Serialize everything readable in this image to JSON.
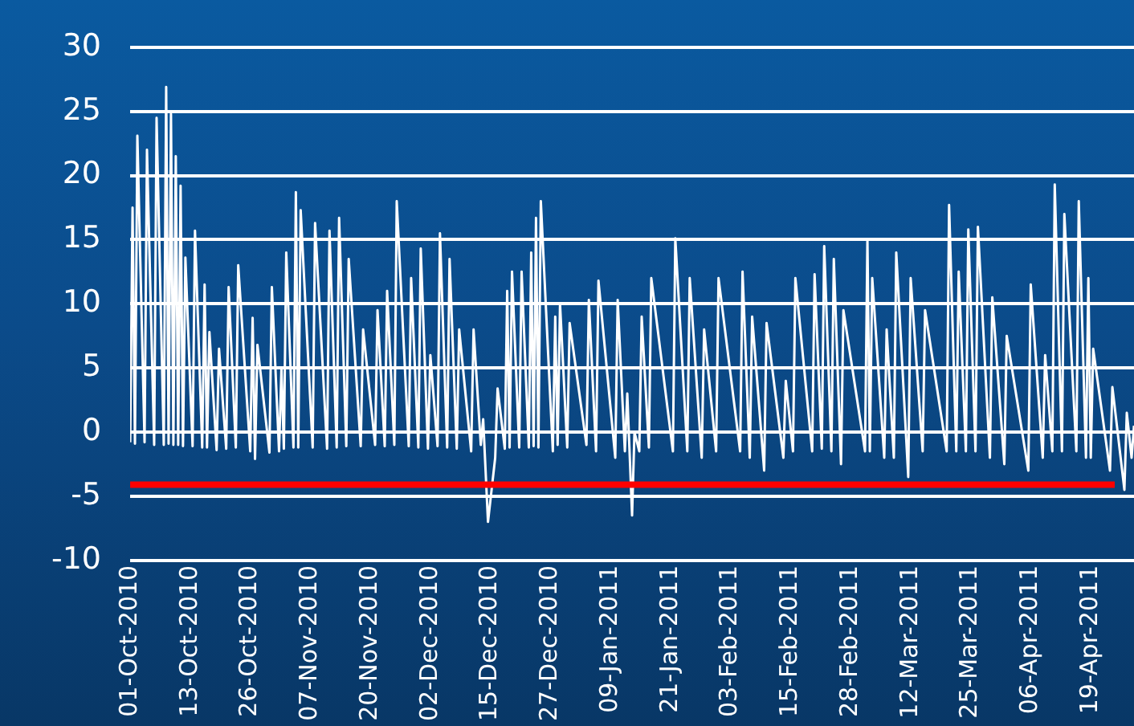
{
  "chart_data": {
    "type": "line",
    "xlim": [
      "2010-10-01",
      "2011-04-28"
    ],
    "xticks": [
      {
        "value": "2010-10-01T00:00",
        "label": "01-Oct-2010"
      },
      {
        "value": "2010-10-13T12:00",
        "label": "13-Oct-2010"
      },
      {
        "value": "2010-10-26T00:00",
        "label": "26-Oct-2010"
      },
      {
        "value": "2010-11-07T12:00",
        "label": "07-Nov-2010"
      },
      {
        "value": "2010-11-20T00:00",
        "label": "20-Nov-2010"
      },
      {
        "value": "2010-12-02T12:00",
        "label": "02-Dec-2010"
      },
      {
        "value": "2010-12-15T00:00",
        "label": "15-Dec-2010"
      },
      {
        "value": "2010-12-27T12:00",
        "label": "27-Dec-2010"
      },
      {
        "value": "2011-01-09T00:00",
        "label": "09-Jan-2011"
      },
      {
        "value": "2011-01-21T12:00",
        "label": "21-Jan-2011"
      },
      {
        "value": "2011-02-03T00:00",
        "label": "03-Feb-2011"
      },
      {
        "value": "2011-02-15T12:00",
        "label": "15-Feb-2011"
      },
      {
        "value": "2011-02-28T00:00",
        "label": "28-Feb-2011"
      },
      {
        "value": "2011-03-12T12:00",
        "label": "12-Mar-2011"
      },
      {
        "value": "2011-03-25T00:00",
        "label": "25-Mar-2011"
      },
      {
        "value": "2011-04-06T12:00",
        "label": "06-Apr-2011"
      },
      {
        "value": "2011-04-19T00:00",
        "label": "19-Apr-2011"
      }
    ],
    "ylim": [
      -10,
      30
    ],
    "yticks": [
      -10,
      -5,
      0,
      5,
      10,
      15,
      20,
      25,
      30
    ],
    "grid": "y",
    "legend": false,
    "marker": "none",
    "line_style": "solid",
    "ref_lines": [
      {
        "axis": "y",
        "value": -4.1,
        "color": "#ff0000"
      }
    ],
    "series": [
      {
        "color": "#ffffff",
        "x": [
          "2010-10-01T00:00",
          "2010-10-01T12:00",
          "2010-10-02T00:00",
          "2010-10-02T12:00",
          "2010-10-04T00:00",
          "2010-10-04T12:00",
          "2010-10-06T00:00",
          "2010-10-06T12:00",
          "2010-10-08T00:00",
          "2010-10-08T12:00",
          "2010-10-09T00:00",
          "2010-10-09T12:00",
          "2010-10-10T00:00",
          "2010-10-10T12:00",
          "2010-10-11T00:00",
          "2010-10-11T12:00",
          "2010-10-12T00:00",
          "2010-10-12T12:00",
          "2010-10-14T00:00",
          "2010-10-14T12:00",
          "2010-10-16T00:00",
          "2010-10-16T12:00",
          "2010-10-17T00:00",
          "2010-10-17T12:00",
          "2010-10-19T00:00",
          "2010-10-19T12:00",
          "2010-10-21T00:00",
          "2010-10-21T12:00",
          "2010-10-23T00:00",
          "2010-10-23T12:00",
          "2010-10-26T00:00",
          "2010-10-26T12:00",
          "2010-10-27T00:00",
          "2010-10-27T12:00",
          "2010-10-30T00:00",
          "2010-10-30T12:00",
          "2010-11-01T00:00",
          "2010-11-01T12:00",
          "2010-11-02T00:00",
          "2010-11-02T12:00",
          "2010-11-04T00:00",
          "2010-11-04T12:00",
          "2010-11-05T00:00",
          "2010-11-05T12:00",
          "2010-11-08T00:00",
          "2010-11-08T12:00",
          "2010-11-11T00:00",
          "2010-11-11T12:00",
          "2010-11-13T00:00",
          "2010-11-13T12:00",
          "2010-11-15T00:00",
          "2010-11-15T12:00",
          "2010-11-18T00:00",
          "2010-11-18T12:00",
          "2010-11-21T00:00",
          "2010-11-21T12:00",
          "2010-11-23T00:00",
          "2010-11-23T12:00",
          "2010-11-25T00:00",
          "2010-11-25T12:00",
          "2010-11-28T00:00",
          "2010-11-28T12:00",
          "2010-11-30T00:00",
          "2010-11-30T12:00",
          "2010-12-02T00:00",
          "2010-12-02T12:00",
          "2010-12-04T00:00",
          "2010-12-04T12:00",
          "2010-12-06T00:00",
          "2010-12-06T12:00",
          "2010-12-08T00:00",
          "2010-12-08T12:00",
          "2010-12-11T00:00",
          "2010-12-11T12:00",
          "2010-12-13T00:00",
          "2010-12-13T12:00",
          "2010-12-14T12:00",
          "2010-12-16T00:00",
          "2010-12-16T12:00",
          "2010-12-18T00:00",
          "2010-12-18T12:00",
          "2010-12-19T00:00",
          "2010-12-19T12:00",
          "2010-12-21T00:00",
          "2010-12-21T12:00",
          "2010-12-23T00:00",
          "2010-12-23T12:00",
          "2010-12-24T00:00",
          "2010-12-24T12:00",
          "2010-12-25T00:00",
          "2010-12-25T12:00",
          "2010-12-28T00:00",
          "2010-12-28T12:00",
          "2010-12-29T00:00",
          "2010-12-29T12:00",
          "2010-12-31T00:00",
          "2010-12-31T12:00",
          "2011-01-04T00:00",
          "2011-01-04T12:00",
          "2011-01-06T00:00",
          "2011-01-06T12:00",
          "2011-01-10T00:00",
          "2011-01-10T12:00",
          "2011-01-12T00:00",
          "2011-01-12T12:00",
          "2011-01-13T12:00",
          "2011-01-14T00:00",
          "2011-01-15T00:00",
          "2011-01-15T12:00",
          "2011-01-17T00:00",
          "2011-01-17T12:00",
          "2011-01-22T00:00",
          "2011-01-22T12:00",
          "2011-01-25T00:00",
          "2011-01-25T12:00",
          "2011-01-28T00:00",
          "2011-01-28T12:00",
          "2011-01-31T00:00",
          "2011-01-31T12:00",
          "2011-02-05T00:00",
          "2011-02-05T12:00",
          "2011-02-07T00:00",
          "2011-02-07T12:00",
          "2011-02-10T00:00",
          "2011-02-10T12:00",
          "2011-02-14T00:00",
          "2011-02-14T12:00",
          "2011-02-16T00:00",
          "2011-02-16T12:00",
          "2011-02-20T00:00",
          "2011-02-20T12:00",
          "2011-02-22T00:00",
          "2011-02-22T12:00",
          "2011-02-24T00:00",
          "2011-02-24T12:00",
          "2011-02-26T00:00",
          "2011-02-26T12:00",
          "2011-03-03T00:00",
          "2011-03-03T12:00",
          "2011-03-04T00:00",
          "2011-03-04T12:00",
          "2011-03-07T00:00",
          "2011-03-07T12:00",
          "2011-03-09T00:00",
          "2011-03-09T12:00",
          "2011-03-12T00:00",
          "2011-03-12T12:00",
          "2011-03-15T00:00",
          "2011-03-15T12:00",
          "2011-03-20T00:00",
          "2011-03-20T12:00",
          "2011-03-22T00:00",
          "2011-03-22T12:00",
          "2011-03-24T00:00",
          "2011-03-24T12:00",
          "2011-03-26T00:00",
          "2011-03-26T12:00",
          "2011-03-29T00:00",
          "2011-03-29T12:00",
          "2011-04-01T00:00",
          "2011-04-01T12:00",
          "2011-04-06T00:00",
          "2011-04-06T12:00",
          "2011-04-09T00:00",
          "2011-04-09T12:00",
          "2011-04-11T00:00",
          "2011-04-11T12:00",
          "2011-04-13T00:00",
          "2011-04-13T12:00",
          "2011-04-16T00:00",
          "2011-04-16T12:00",
          "2011-04-18T00:00",
          "2011-04-18T12:00",
          "2011-04-19T00:00",
          "2011-04-19T12:00",
          "2011-04-23T00:00",
          "2011-04-23T12:00",
          "2011-04-26T00:00",
          "2011-04-26T12:00",
          "2011-04-27T12:00",
          "2011-04-28T00:00"
        ],
        "values": [
          -0.8,
          17.5,
          -0.9,
          23.1,
          -0.8,
          22,
          -1,
          24.5,
          -1,
          26.9,
          -0.9,
          24.8,
          -1,
          21.5,
          -1,
          19.2,
          -1.1,
          13.6,
          -1.1,
          15.7,
          -1.2,
          11.5,
          -1.2,
          7.8,
          -1.4,
          6.5,
          -1.3,
          11.3,
          -1.2,
          13,
          -1.5,
          8.9,
          -2.1,
          6.8,
          -1.6,
          11.3,
          -1.5,
          5,
          -1.3,
          14,
          -1.2,
          18.7,
          -1.2,
          17.3,
          -1.2,
          16.3,
          -1.3,
          15.7,
          -1.2,
          16.7,
          -1.1,
          13.5,
          -1.1,
          8,
          -1,
          9.5,
          -1.1,
          11,
          -1,
          18,
          -1.1,
          12,
          -1.2,
          14.3,
          -1.3,
          6,
          -1.1,
          15.5,
          -1.2,
          13.5,
          -1.3,
          8,
          -1.5,
          8,
          -1,
          1,
          -7,
          -2,
          3.4,
          -1.3,
          11,
          -1.2,
          12.5,
          -1.2,
          12.5,
          -1.2,
          14,
          -1.1,
          16.7,
          -1.2,
          18,
          -1.5,
          9,
          -1,
          10,
          -1.2,
          8.5,
          -1,
          10.3,
          -1.5,
          11.8,
          -2,
          10.3,
          -1.5,
          3,
          -6.5,
          0,
          -1.5,
          9,
          -1.2,
          12,
          -1.5,
          15.1,
          -1.5,
          12,
          -2,
          8,
          -1.5,
          12,
          -1.5,
          12.5,
          -2,
          9,
          -3,
          8.5,
          -2,
          4,
          -1.5,
          12,
          -1.5,
          12.3,
          -1.3,
          14.5,
          -1.5,
          13.5,
          -2.5,
          9.5,
          -1.5,
          15,
          -1.5,
          12,
          -2,
          8,
          -2,
          14,
          -3.5,
          12,
          -1.5,
          9.5,
          -1.5,
          17.7,
          -1.5,
          12.5,
          -1.5,
          15.8,
          -1.5,
          16,
          -2,
          10.5,
          -2.5,
          7.5,
          -3,
          11.5,
          -2,
          6,
          -1.5,
          19.3,
          -1.5,
          17,
          -1.5,
          18,
          -2,
          12,
          -2,
          6.5,
          -3,
          3.5,
          -4.5,
          1.5,
          -2,
          0.5
        ]
      }
    ]
  }
}
